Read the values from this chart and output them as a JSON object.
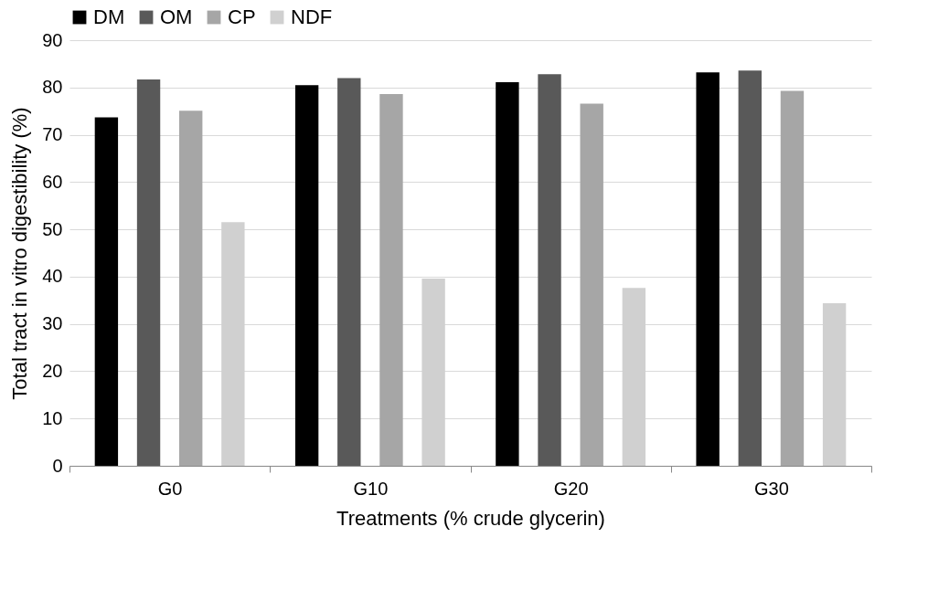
{
  "chart_data": {
    "type": "bar",
    "xlabel": "Treatments (% crude glycerin)",
    "ylabel": "Total tract in vitro  digestibility (%)",
    "categories": [
      "G0",
      "G10",
      "G20",
      "G30"
    ],
    "series": [
      {
        "name": "DM",
        "color": "#000000",
        "values": [
          73.7,
          80.5,
          81.1,
          83.2
        ]
      },
      {
        "name": "OM",
        "color": "#595959",
        "values": [
          81.7,
          82.0,
          82.8,
          83.6
        ]
      },
      {
        "name": "CP",
        "color": "#a6a6a6",
        "values": [
          75.1,
          78.6,
          76.6,
          79.3
        ]
      },
      {
        "name": "NDF",
        "color": "#d0d0d0",
        "values": [
          51.5,
          39.6,
          37.6,
          34.4
        ]
      }
    ],
    "ylim": [
      0,
      90
    ],
    "yticks": [
      0,
      10,
      20,
      30,
      40,
      50,
      60,
      70,
      80,
      90
    ],
    "grid": "y",
    "legend": "top"
  }
}
